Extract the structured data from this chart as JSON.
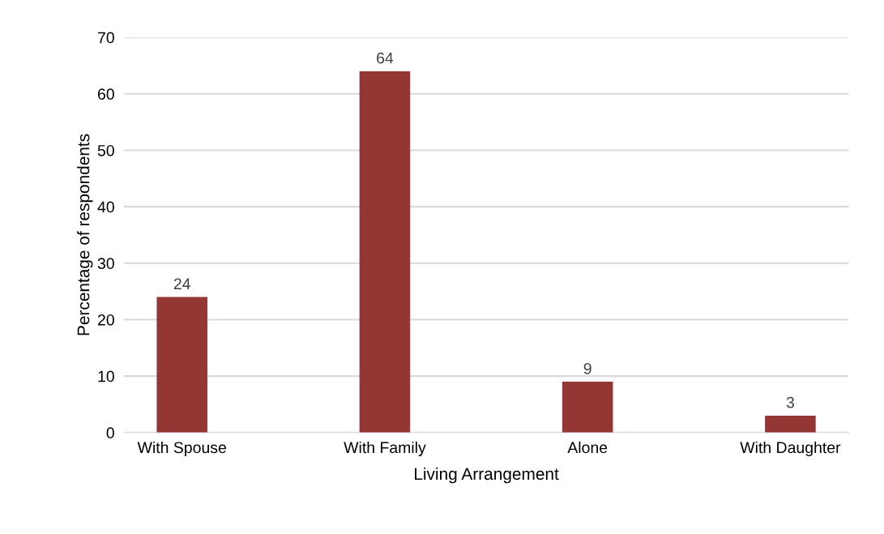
{
  "chart_data": {
    "type": "bar",
    "xlabel": "Living Arrangement",
    "ylabel": "Percentage of respondents",
    "categories": [
      "With Spouse",
      "With Family",
      "Alone",
      "With Daughter"
    ],
    "values": [
      24,
      64,
      9,
      3
    ],
    "color": "#943634",
    "ylim": [
      0,
      70
    ],
    "yticks": [
      0,
      10,
      20,
      30,
      40,
      50,
      60,
      70
    ],
    "grid": "y",
    "data_labels": true
  }
}
